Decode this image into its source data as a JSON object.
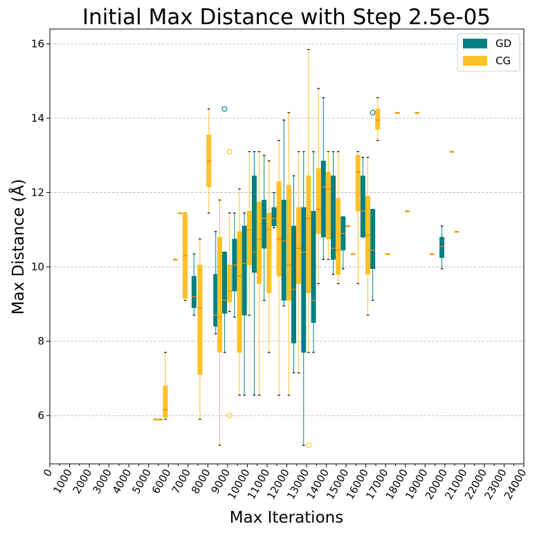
{
  "chart_data": {
    "type": "boxplot",
    "title": "Initial Max Distance with Step 2.5e-05",
    "xlabel": "Max Iterations",
    "ylabel": "Max Distance (Å)",
    "xlim": [
      0,
      24000
    ],
    "ylim": [
      4.7,
      16.4
    ],
    "x_ticks": [
      "0",
      "1000",
      "2000",
      "3000",
      "4000",
      "5000",
      "6000",
      "7000",
      "8000",
      "9000",
      "10000",
      "11000",
      "12000",
      "13000",
      "14000",
      "15000",
      "16000",
      "17000",
      "18000",
      "19000",
      "20000",
      "21000",
      "22000",
      "23000",
      "24000"
    ],
    "y_ticks": [
      6,
      8,
      10,
      12,
      14,
      16
    ],
    "legend": [
      {
        "name": "GD",
        "color": "#008080"
      },
      {
        "name": "CG",
        "color": "#FFC125"
      }
    ],
    "series": [
      {
        "name": "GD",
        "color": "#008080",
        "boxes": [
          {
            "x": 7300,
            "whislo": 8.7,
            "q1": 8.9,
            "med": 9.2,
            "q3": 9.75,
            "whishi": 10.35
          },
          {
            "x": 8400,
            "whislo": 8.2,
            "q1": 8.4,
            "med": 8.7,
            "q3": 9.8,
            "whishi": 10.95
          },
          {
            "x": 8850,
            "whislo": 7.7,
            "q1": 8.75,
            "med": 9.1,
            "q3": 10.4,
            "whishi": 10.4,
            "fliers": [
              14.25
            ]
          },
          {
            "x": 9350,
            "whislo": 8.65,
            "q1": 9.35,
            "med": 10.05,
            "q3": 10.75,
            "whishi": 11.45
          },
          {
            "x": 9850,
            "whislo": 6.55,
            "q1": 8.7,
            "med": 10.1,
            "q3": 11.1,
            "whishi": 11.45
          },
          {
            "x": 10350,
            "whislo": 6.55,
            "q1": 9.85,
            "med": 10.4,
            "q3": 12.45,
            "whishi": 13.1
          },
          {
            "x": 10850,
            "whislo": 9.1,
            "q1": 10.5,
            "med": 11.3,
            "q3": 11.8,
            "whishi": 13.0
          },
          {
            "x": 11350,
            "whislo": 11.05,
            "q1": 11.1,
            "med": 11.3,
            "q3": 11.6,
            "whishi": 12.0
          },
          {
            "x": 11850,
            "whislo": 8.95,
            "q1": 9.1,
            "med": 10.7,
            "q3": 11.8,
            "whishi": 13.95
          },
          {
            "x": 12350,
            "whislo": 7.15,
            "q1": 7.95,
            "med": 9.4,
            "q3": 11.1,
            "whishi": 12.45
          },
          {
            "x": 12850,
            "whislo": 5.2,
            "q1": 7.7,
            "med": 10.4,
            "q3": 11.6,
            "whishi": 13.1
          },
          {
            "x": 13350,
            "whislo": 7.7,
            "q1": 8.5,
            "med": 9.1,
            "q3": 11.5,
            "whishi": 13.1
          },
          {
            "x": 13850,
            "whislo": 10.2,
            "q1": 10.8,
            "med": 12.15,
            "q3": 12.85,
            "whishi": 14.55
          },
          {
            "x": 14350,
            "whislo": 9.8,
            "q1": 10.2,
            "med": 10.5,
            "q3": 12.45,
            "whishi": 13.1
          },
          {
            "x": 14850,
            "whislo": 9.95,
            "q1": 10.45,
            "med": 10.9,
            "q3": 11.35,
            "whishi": 11.35
          },
          {
            "x": 15850,
            "whislo": 10.8,
            "q1": 10.8,
            "med": 11.5,
            "q3": 12.45,
            "whishi": 12.95
          },
          {
            "x": 16350,
            "whislo": 9.1,
            "q1": 9.95,
            "med": 10.45,
            "q3": 11.55,
            "whishi": 11.55,
            "fliers": [
              14.15
            ]
          },
          {
            "x": 19850,
            "whislo": 9.95,
            "q1": 10.25,
            "med": 10.55,
            "q3": 10.8,
            "whishi": 11.1
          }
        ]
      },
      {
        "name": "CG",
        "color": "#FFC125",
        "boxes": [
          {
            "x": 5350,
            "whislo": 5.9,
            "q1": 5.9,
            "med": 5.9,
            "q3": 5.9,
            "whishi": 5.9
          },
          {
            "x": 5600,
            "whislo": 5.9,
            "q1": 5.9,
            "med": 5.9,
            "q3": 5.9,
            "whishi": 5.9
          },
          {
            "x": 5850,
            "whislo": 5.9,
            "q1": 5.95,
            "med": 6.15,
            "q3": 6.8,
            "whishi": 7.7
          },
          {
            "x": 6350,
            "whislo": 10.2,
            "q1": 10.2,
            "med": 10.2,
            "q3": 10.2,
            "whishi": 10.2
          },
          {
            "x": 6600,
            "whislo": 11.45,
            "q1": 11.45,
            "med": 11.45,
            "q3": 11.45,
            "whishi": 11.45
          },
          {
            "x": 6850,
            "whislo": 9.1,
            "q1": 9.15,
            "med": 10.3,
            "q3": 11.45,
            "whishi": 11.45
          },
          {
            "x": 7600,
            "whislo": 5.9,
            "q1": 7.1,
            "med": 8.9,
            "q3": 10.05,
            "whishi": 10.75
          },
          {
            "x": 8050,
            "whislo": 11.45,
            "q1": 12.15,
            "med": 12.85,
            "q3": 13.55,
            "whishi": 14.25
          },
          {
            "x": 8600,
            "whislo": 5.2,
            "q1": 7.7,
            "med": 8.65,
            "q3": 10.8,
            "whishi": 11.8
          },
          {
            "x": 9100,
            "whislo": 8.8,
            "q1": 9.05,
            "med": 9.35,
            "q3": 10.05,
            "whishi": 11.45,
            "fliers": [
              13.1,
              6.0
            ]
          },
          {
            "x": 9600,
            "whislo": 6.55,
            "q1": 7.7,
            "med": 9.75,
            "q3": 10.95,
            "whishi": 12.1
          },
          {
            "x": 10100,
            "whislo": 8.7,
            "q1": 10.05,
            "med": 11.0,
            "q3": 11.5,
            "whishi": 13.1
          },
          {
            "x": 10600,
            "whislo": 6.55,
            "q1": 9.55,
            "med": 10.75,
            "q3": 11.75,
            "whishi": 13.1
          },
          {
            "x": 11100,
            "whislo": 7.7,
            "q1": 9.3,
            "med": 11.0,
            "q3": 11.45,
            "whishi": 12.85
          },
          {
            "x": 11600,
            "whislo": 6.55,
            "q1": 9.75,
            "med": 10.75,
            "q3": 12.3,
            "whishi": 13.4
          },
          {
            "x": 12100,
            "whislo": 6.55,
            "q1": 9.1,
            "med": 10.05,
            "q3": 12.2,
            "whishi": 14.15
          },
          {
            "x": 12600,
            "whislo": 7.15,
            "q1": 9.55,
            "med": 10.5,
            "q3": 11.6,
            "whishi": 13.1
          },
          {
            "x": 13100,
            "whislo": 7.7,
            "q1": 9.3,
            "med": 11.3,
            "q3": 12.45,
            "whishi": 15.85,
            "fliers": [
              5.2
            ]
          },
          {
            "x": 13600,
            "whislo": 9.55,
            "q1": 10.9,
            "med": 11.55,
            "q3": 12.65,
            "whishi": 14.8
          },
          {
            "x": 14100,
            "whislo": 10.2,
            "q1": 10.75,
            "med": 12.1,
            "q3": 12.55,
            "whishi": 13.1
          },
          {
            "x": 14600,
            "whislo": 9.55,
            "q1": 9.8,
            "med": 10.45,
            "q3": 11.85,
            "whishi": 13.1
          },
          {
            "x": 15100,
            "whislo": 11.1,
            "q1": 11.1,
            "med": 11.1,
            "q3": 11.1,
            "whishi": 11.1
          },
          {
            "x": 15350,
            "whislo": 10.35,
            "q1": 10.35,
            "med": 10.35,
            "q3": 10.35,
            "whishi": 10.35
          },
          {
            "x": 15600,
            "whislo": 9.55,
            "q1": 11.5,
            "med": 12.55,
            "q3": 13.0,
            "whishi": 13.1
          },
          {
            "x": 16100,
            "whislo": 8.7,
            "q1": 9.8,
            "med": 10.85,
            "q3": 11.9,
            "whishi": 12.95
          },
          {
            "x": 16600,
            "whislo": 13.4,
            "q1": 13.7,
            "med": 13.95,
            "q3": 14.25,
            "whishi": 14.55
          },
          {
            "x": 17100,
            "whislo": 10.35,
            "q1": 10.35,
            "med": 10.35,
            "q3": 10.35,
            "whishi": 10.35
          },
          {
            "x": 17600,
            "whislo": 14.15,
            "q1": 14.15,
            "med": 14.15,
            "q3": 14.15,
            "whishi": 14.15
          },
          {
            "x": 18100,
            "whislo": 11.5,
            "q1": 11.5,
            "med": 11.5,
            "q3": 11.5,
            "whishi": 11.5
          },
          {
            "x": 18600,
            "whislo": 14.15,
            "q1": 14.15,
            "med": 14.15,
            "q3": 14.15,
            "whishi": 14.15
          },
          {
            "x": 19350,
            "whislo": 10.35,
            "q1": 10.35,
            "med": 10.35,
            "q3": 10.35,
            "whishi": 10.35
          },
          {
            "x": 20350,
            "whislo": 13.1,
            "q1": 13.1,
            "med": 13.1,
            "q3": 13.1,
            "whishi": 13.1
          },
          {
            "x": 20600,
            "whislo": 10.95,
            "q1": 10.95,
            "med": 10.95,
            "q3": 10.95,
            "whishi": 10.95
          }
        ]
      }
    ]
  }
}
